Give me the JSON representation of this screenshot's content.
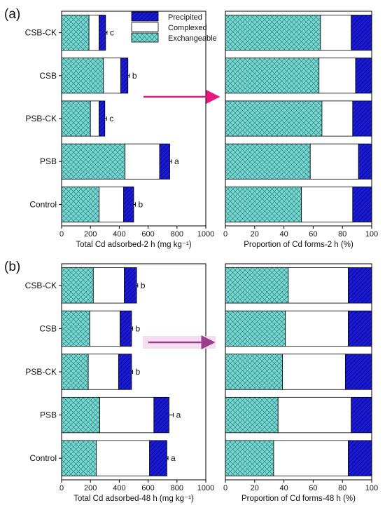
{
  "figure": {
    "colors": {
      "precipited": "#1a1adc",
      "complexed": "#ffffff",
      "exchangeable": "#74d8d0",
      "arrow_a": "#e8197d",
      "arrow_b": "#9a3f8c"
    }
  },
  "legend": {
    "items": [
      {
        "name": "Precipited",
        "color": "#1a1adc",
        "hatch": "right-diagonal"
      },
      {
        "name": "Complexed",
        "color": "#ffffff",
        "hatch": "none"
      },
      {
        "name": "Exchangeable",
        "color": "#74d8d0",
        "hatch": "cross"
      }
    ]
  },
  "chart_data": [
    {
      "panel": "(a)",
      "type": "bar",
      "orientation": "horizontal",
      "stacked": true,
      "categories": [
        "CSB-CK",
        "CSB",
        "PSB-CK",
        "PSB",
        "Control"
      ],
      "series": [
        {
          "name": "Exchangeable",
          "values": [
            190,
            290,
            200,
            440,
            260
          ]
        },
        {
          "name": "Complexed",
          "values": [
            70,
            120,
            60,
            240,
            170
          ]
        },
        {
          "name": "Precipited",
          "values": [
            45,
            50,
            40,
            70,
            70
          ]
        }
      ],
      "error_bars": [
        10,
        10,
        12,
        12,
        12
      ],
      "significance_letters": [
        "c",
        "b",
        "c",
        "a",
        "b"
      ],
      "xlabel": "Total Cd adsorbed-2 h (mg kg⁻¹)",
      "xlim": [
        0,
        1000
      ],
      "xticks": [
        0,
        200,
        400,
        600,
        800,
        1000
      ]
    },
    {
      "panel": "(a)",
      "type": "bar",
      "orientation": "horizontal",
      "stacked": true,
      "categories": [
        "CSB-CK",
        "CSB",
        "PSB-CK",
        "PSB",
        "Control"
      ],
      "series": [
        {
          "name": "Exchangeable",
          "values": [
            65,
            64,
            66,
            58,
            52
          ]
        },
        {
          "name": "Complexed",
          "values": [
            21,
            25,
            21,
            33,
            35
          ]
        },
        {
          "name": "Precipited",
          "values": [
            14,
            11,
            13,
            9,
            13
          ]
        }
      ],
      "xlabel": "Proportion of Cd forms-2 h (%)",
      "xlim": [
        0,
        100
      ],
      "xticks": [
        0,
        20,
        40,
        60,
        80,
        100
      ]
    },
    {
      "panel": "(b)",
      "type": "bar",
      "orientation": "horizontal",
      "stacked": true,
      "categories": [
        "CSB-CK",
        "CSB",
        "PSB-CK",
        "PSB",
        "Control"
      ],
      "series": [
        {
          "name": "Exchangeable",
          "values": [
            220,
            195,
            185,
            265,
            240
          ]
        },
        {
          "name": "Complexed",
          "values": [
            215,
            210,
            210,
            375,
            370
          ]
        },
        {
          "name": "Precipited",
          "values": [
            85,
            80,
            90,
            105,
            120
          ]
        }
      ],
      "error_bars": [
        8,
        8,
        8,
        30,
        8
      ],
      "significance_letters": [
        "b",
        "b",
        "b",
        "a",
        "a"
      ],
      "xlabel": "Total Cd adsorbed-48 h (mg kg⁻¹)",
      "xlim": [
        0,
        1000
      ],
      "xticks": [
        0,
        200,
        400,
        600,
        800,
        1000
      ]
    },
    {
      "panel": "(b)",
      "type": "bar",
      "orientation": "horizontal",
      "stacked": true,
      "categories": [
        "CSB-CK",
        "CSB",
        "PSB-CK",
        "PSB",
        "Control"
      ],
      "series": [
        {
          "name": "Exchangeable",
          "values": [
            43,
            41,
            39,
            36,
            33
          ]
        },
        {
          "name": "Complexed",
          "values": [
            41,
            43,
            43,
            50,
            51
          ]
        },
        {
          "name": "Precipited",
          "values": [
            16,
            16,
            18,
            14,
            16
          ]
        }
      ],
      "xlabel": "Proportion of Cd forms-48 h (%)",
      "xlim": [
        0,
        100
      ],
      "xticks": [
        0,
        20,
        40,
        60,
        80,
        100
      ]
    }
  ]
}
